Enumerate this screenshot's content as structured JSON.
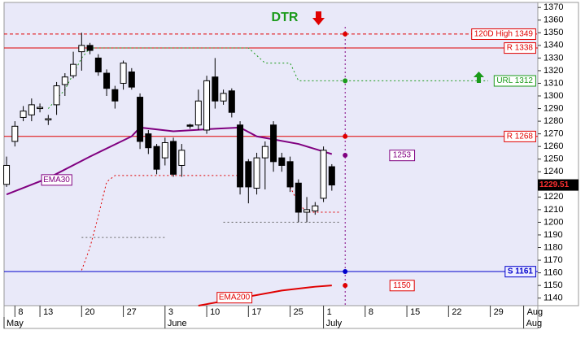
{
  "chart_data": {
    "type": "candlestick",
    "title": "DTR",
    "ylim": [
      1134,
      1374
    ],
    "yticks": [
      1140,
      1150,
      1160,
      1170,
      1180,
      1190,
      1200,
      1210,
      1220,
      1230,
      1240,
      1250,
      1260,
      1270,
      1280,
      1290,
      1300,
      1310,
      1320,
      1330,
      1340,
      1350,
      1360,
      1370
    ],
    "xlim": [
      -0.3,
      63.7
    ],
    "xticks": [
      {
        "value": 1,
        "label": "8"
      },
      {
        "value": 4,
        "label": "13"
      },
      {
        "value": 9,
        "label": "20"
      },
      {
        "value": 14,
        "label": "27"
      },
      {
        "value": 19,
        "label": "3"
      },
      {
        "value": 24,
        "label": "10"
      },
      {
        "value": 29,
        "label": "17"
      },
      {
        "value": 34,
        "label": "25"
      },
      {
        "value": 38,
        "label": "1"
      },
      {
        "value": 43,
        "label": "8"
      },
      {
        "value": 48,
        "label": "15"
      },
      {
        "value": 53,
        "label": "22"
      },
      {
        "value": 58,
        "label": "29"
      },
      {
        "value": 62,
        "label": "Aug"
      }
    ],
    "months": [
      {
        "value": -0.3,
        "label": "May"
      },
      {
        "value": 19,
        "label": "June"
      },
      {
        "value": 38,
        "label": "July"
      },
      {
        "value": 62,
        "label": "Aug"
      }
    ],
    "candles": {
      "x": [
        0,
        1,
        2,
        3,
        4,
        5,
        6,
        7,
        8,
        9,
        10,
        11,
        12,
        13,
        14,
        15,
        16,
        17,
        18,
        19,
        20,
        21,
        22,
        23,
        24,
        25,
        26,
        27,
        28,
        29,
        30,
        31,
        32,
        33,
        34,
        35,
        36,
        37,
        38,
        39
      ],
      "open": [
        1230,
        1264,
        1283,
        1285,
        1290,
        1281,
        1293,
        1309,
        1316,
        1335,
        1340,
        1330,
        1318,
        1305,
        1310,
        1319,
        1299,
        1270,
        1260,
        1251,
        1264,
        1245,
        1277,
        1277,
        1273,
        1315,
        1296,
        1304,
        1277,
        1248,
        1227,
        1251,
        1277,
        1251,
        1248,
        1231,
        1208,
        1209,
        1219,
        1244
      ],
      "high": [
        1252,
        1280,
        1292,
        1298,
        1294,
        1285,
        1311,
        1318,
        1335,
        1350,
        1342,
        1333,
        1321,
        1308,
        1328,
        1322,
        1302,
        1273,
        1262,
        1267,
        1267,
        1262,
        1278,
        1305,
        1316,
        1330,
        1305,
        1306,
        1280,
        1250,
        1255,
        1264,
        1280,
        1255,
        1252,
        1234,
        1220,
        1216,
        1260,
        1246
      ],
      "low": [
        1228,
        1260,
        1280,
        1280,
        1287,
        1277,
        1285,
        1300,
        1314,
        1320,
        1333,
        1316,
        1300,
        1290,
        1305,
        1305,
        1258,
        1254,
        1238,
        1245,
        1236,
        1236,
        1274,
        1273,
        1270,
        1290,
        1293,
        1283,
        1222,
        1215,
        1222,
        1226,
        1240,
        1240,
        1224,
        1200,
        1200,
        1206,
        1216,
        1225
      ],
      "close": [
        1245,
        1276,
        1288,
        1293,
        1291,
        1282,
        1308,
        1315,
        1325,
        1340,
        1336,
        1319,
        1306,
        1296,
        1326,
        1307,
        1264,
        1259,
        1242,
        1263,
        1238,
        1257,
        1276,
        1296,
        1312,
        1296,
        1302,
        1287,
        1228,
        1228,
        1251,
        1260,
        1248,
        1245,
        1228,
        1208,
        1210,
        1213,
        1257,
        1229.51
      ]
    },
    "last_price": 1229.51,
    "series": [
      {
        "name": "EMA30",
        "color": "#800080",
        "style": "solid",
        "x": [
          0,
          5,
          10,
          15,
          16,
          20,
          25,
          28,
          30,
          35,
          39
        ],
        "values": [
          1222,
          1235,
          1252,
          1268,
          1275,
          1272,
          1274,
          1275,
          1268,
          1262,
          1254
        ]
      },
      {
        "name": "EMA200",
        "color": "#e00000",
        "style": "solid",
        "x": [
          23,
          28,
          33,
          37,
          39
        ],
        "values": [
          1134,
          1140,
          1146,
          1149,
          1150
        ]
      },
      {
        "color": "#e00000",
        "style": "dotted",
        "x": [
          9,
          10,
          11,
          12,
          13,
          28,
          29,
          34,
          35,
          36,
          40
        ],
        "values": [
          1162,
          1180,
          1205,
          1232,
          1237,
          1237,
          null,
          1228,
          1215,
          1208,
          1208
        ]
      },
      {
        "color": "#1a9a1a",
        "style": "dotted",
        "x": [
          5,
          7,
          9,
          10,
          29,
          31,
          34,
          35,
          41
        ],
        "values": [
          1290,
          1305,
          1330,
          1338,
          1338,
          1326,
          1326,
          1312,
          1312
        ]
      },
      {
        "color": "#666666",
        "style": "dotted",
        "x": [
          9,
          19,
          20,
          26,
          40
        ],
        "values": [
          1188,
          1188,
          null,
          1200,
          1200
        ]
      }
    ],
    "levels": [
      {
        "label": "120D High 1349",
        "value": 1349,
        "color": "#e00000",
        "line": "dashed",
        "dot": true
      },
      {
        "label": "R 1338",
        "value": 1338,
        "color": "#e00000",
        "line": "solid",
        "dot": false
      },
      {
        "label": "URL 1312",
        "value": 1312,
        "color": "#1a9a1a",
        "line": "extension",
        "dot": true
      },
      {
        "label": "R 1268",
        "value": 1268,
        "color": "#e00000",
        "line": "solid",
        "dot": true
      },
      {
        "label": "S 1161",
        "value": 1161,
        "color": "#0000cc",
        "line": "solid",
        "dot": true
      }
    ],
    "end_markers": [
      {
        "value": 1253,
        "color": "#800080"
      },
      {
        "value": 1150,
        "color": "#e00000"
      }
    ]
  }
}
